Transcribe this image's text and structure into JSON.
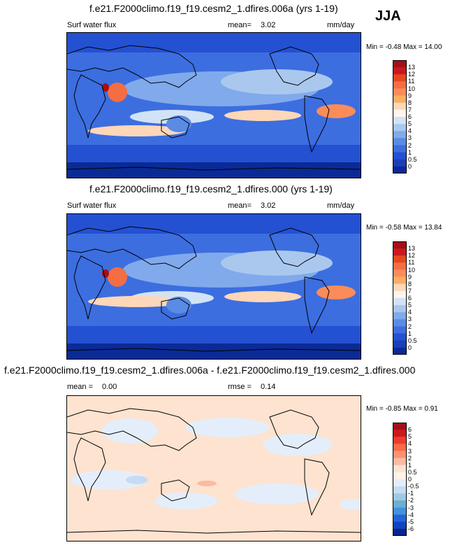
{
  "season": "JJA",
  "panels": [
    {
      "title": "f.e21.F2000climo.f19_f19.cesm2_1.dfires.006a (yrs 1-19)",
      "left_label": "Surf water flux",
      "stat_label": "mean=",
      "stat_value": "3.02",
      "units": "mm/day",
      "minmax": "Min = -0.48 Max = 14.00",
      "colorbar_labels": [
        "13",
        "12",
        "11",
        "10",
        "9",
        "8",
        "7",
        "6",
        "5",
        "4",
        "3",
        "2",
        "1",
        "0.5",
        "0"
      ]
    },
    {
      "title": "f.e21.F2000climo.f19_f19.cesm2_1.dfires.000 (yrs 1-19)",
      "left_label": "Surf water flux",
      "stat_label": "mean=",
      "stat_value": "3.02",
      "units": "mm/day",
      "minmax": "Min = -0.58 Max = 13.84",
      "colorbar_labels": [
        "13",
        "12",
        "11",
        "10",
        "9",
        "8",
        "7",
        "6",
        "5",
        "4",
        "3",
        "2",
        "1",
        "0.5",
        "0"
      ]
    },
    {
      "title": "f.e21.F2000climo.f19_f19.cesm2_1.dfires.006a - f.e21.F2000climo.f19_f19.cesm2_1.dfires.000",
      "left_label": "mean =",
      "left_value": "0.00",
      "stat_label": "rmse =",
      "stat_value": "0.14",
      "units": "",
      "minmax": "Min = -0.85 Max =  0.91",
      "colorbar_labels": [
        "6",
        "5",
        "4",
        "3",
        "2",
        "1",
        "0.5",
        "0",
        "-0.5",
        "-1",
        "-2",
        "-3",
        "-4",
        "-5",
        "-6"
      ]
    }
  ],
  "chart_data": [
    {
      "type": "heatmap",
      "title": "f.e21.F2000climo.f19_f19.cesm2_1.dfires.006a (yrs 1-19)",
      "variable": "Surf water flux",
      "units": "mm/day",
      "mean": 3.02,
      "min": -0.48,
      "max": 14.0,
      "levels": [
        0,
        0.5,
        1,
        2,
        3,
        4,
        5,
        6,
        7,
        8,
        9,
        10,
        11,
        12,
        13
      ]
    },
    {
      "type": "heatmap",
      "title": "f.e21.F2000climo.f19_f19.cesm2_1.dfires.000 (yrs 1-19)",
      "variable": "Surf water flux",
      "units": "mm/day",
      "mean": 3.02,
      "min": -0.58,
      "max": 13.84,
      "levels": [
        0,
        0.5,
        1,
        2,
        3,
        4,
        5,
        6,
        7,
        8,
        9,
        10,
        11,
        12,
        13
      ]
    },
    {
      "type": "heatmap",
      "title": "f.e21.F2000climo.f19_f19.cesm2_1.dfires.006a - f.e21.F2000climo.f19_f19.cesm2_1.dfires.000",
      "mean": 0.0,
      "rmse": 0.14,
      "min": -0.85,
      "max": 0.91,
      "levels": [
        -6,
        -5,
        -4,
        -3,
        -2,
        -1,
        -0.5,
        0,
        0.5,
        1,
        2,
        3,
        4,
        5,
        6
      ]
    }
  ],
  "colors": {
    "abs_scale": [
      "#a50f15",
      "#cb181d",
      "#e6471f",
      "#f46d43",
      "#fb8c59",
      "#fdae61",
      "#fdd7b8",
      "#fff5ec",
      "#d2e3f5",
      "#aac8ee",
      "#80aaeb",
      "#5a8be5",
      "#3c6ee0",
      "#2450d2",
      "#1a3fb8",
      "#0a2a96"
    ],
    "diff_scale": [
      "#a50f15",
      "#cb181d",
      "#ef3b2c",
      "#fb6a4a",
      "#fc9272",
      "#fcbba1",
      "#fde3d0",
      "#fff2e6",
      "#e4eefa",
      "#c6dbf5",
      "#9ecae1",
      "#6baed6",
      "#4292e0",
      "#2166d8",
      "#1344c0",
      "#08248e"
    ]
  }
}
